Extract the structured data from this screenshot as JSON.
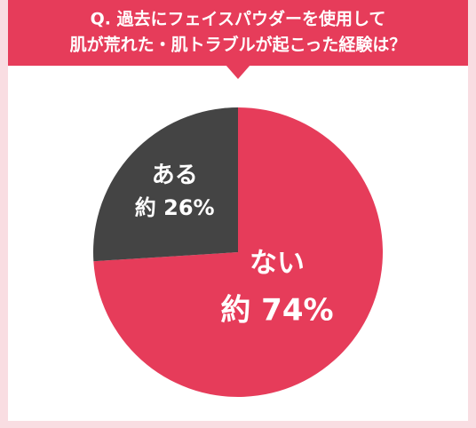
{
  "chart_data": {
    "type": "pie",
    "title": [
      "Q. 過去にフェイスパウダーを使用して",
      "肌が荒れた・肌トラブルが起こった経験は？"
    ],
    "categories": [
      "ない",
      "ある"
    ],
    "values": [
      74,
      26
    ],
    "value_labels": [
      "約 74%",
      "約 26%"
    ],
    "colors": [
      "#e63c5a",
      "#444444"
    ]
  }
}
